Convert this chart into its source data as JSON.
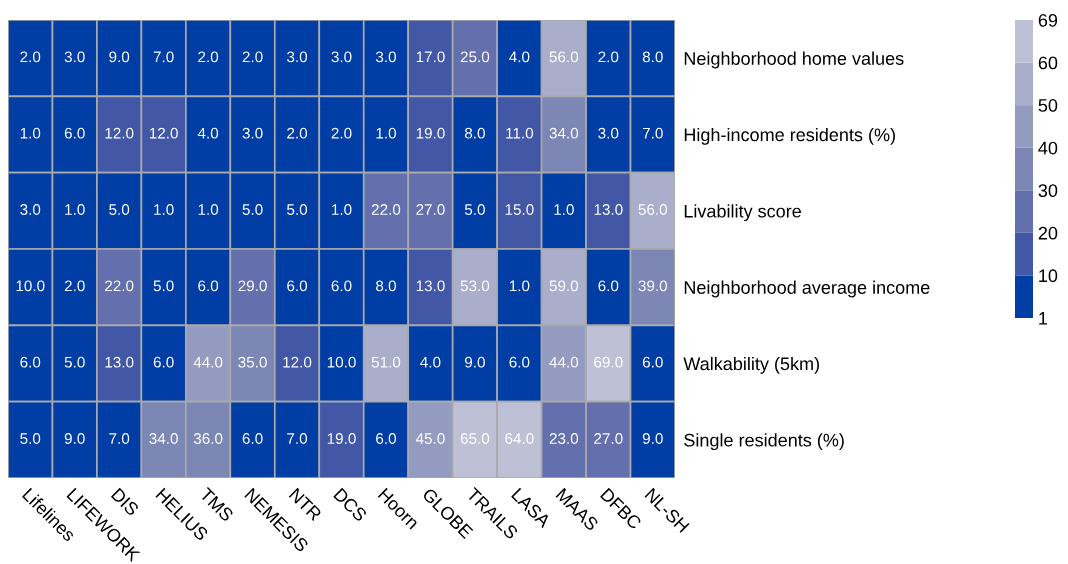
{
  "chart_data": {
    "type": "heatmap",
    "categories": [
      "Lifelines",
      "LIFEWORK",
      "DIS",
      "HELIUS",
      "TMS",
      "NEMESIS",
      "NTR",
      "DCS",
      "Hoorn",
      "GLOBE",
      "TRAILS",
      "LASA",
      "MAAS",
      "DFBC",
      "NL-SH"
    ],
    "y_categories": [
      "Neighborhood home values",
      "High-income residents (%)",
      "Livability score",
      "Neighborhood average income",
      "Walkability (5km)",
      "Single residents (%)"
    ],
    "cells": [
      [
        2,
        3,
        9,
        7,
        2,
        2,
        3,
        3,
        3,
        17,
        25,
        4,
        56,
        2,
        8
      ],
      [
        1,
        6,
        12,
        12,
        4,
        3,
        2,
        2,
        1,
        19,
        8,
        11,
        34,
        3,
        7
      ],
      [
        3,
        1,
        5,
        1,
        1,
        5,
        5,
        1,
        22,
        27,
        5,
        15,
        1,
        13,
        56
      ],
      [
        10,
        2,
        22,
        5,
        6,
        29,
        6,
        6,
        8,
        13,
        53,
        1,
        59,
        6,
        39
      ],
      [
        6,
        5,
        13,
        6,
        44,
        35,
        12,
        10,
        51,
        4,
        9,
        6,
        44,
        69,
        6
      ],
      [
        5,
        9,
        7,
        34,
        36,
        6,
        7,
        19,
        6,
        45,
        65,
        64,
        23,
        27,
        9
      ]
    ],
    "cell_labels": [
      [
        "2.0",
        "3.0",
        "9.0",
        "7.0",
        "2.0",
        "2.0",
        "3.0",
        "3.0",
        "3.0",
        "17.0",
        "25.0",
        "4.0",
        "56.0",
        "2.0",
        "8.0"
      ],
      [
        "1.0",
        "6.0",
        "12.0",
        "12.0",
        "4.0",
        "3.0",
        "2.0",
        "2.0",
        "1.0",
        "19.0",
        "8.0",
        "11.0",
        "34.0",
        "3.0",
        "7.0"
      ],
      [
        "3.0",
        "1.0",
        "5.0",
        "1.0",
        "1.0",
        "5.0",
        "5.0",
        "1.0",
        "22.0",
        "27.0",
        "5.0",
        "15.0",
        "1.0",
        "13.0",
        "56.0"
      ],
      [
        "10.0",
        "2.0",
        "22.0",
        "5.0",
        "6.0",
        "29.0",
        "6.0",
        "6.0",
        "8.0",
        "13.0",
        "53.0",
        "1.0",
        "59.0",
        "6.0",
        "39.0"
      ],
      [
        "6.0",
        "5.0",
        "13.0",
        "6.0",
        "44.0",
        "35.0",
        "12.0",
        "10.0",
        "51.0",
        "4.0",
        "9.0",
        "6.0",
        "44.0",
        "69.0",
        "6.0"
      ],
      [
        "5.0",
        "9.0",
        "7.0",
        "34.0",
        "36.0",
        "6.0",
        "7.0",
        "19.0",
        "6.0",
        "45.0",
        "65.0",
        "64.0",
        "23.0",
        "27.0",
        "9.0"
      ]
    ],
    "clim": [
      1,
      69
    ],
    "cticks": [
      1,
      10,
      20,
      30,
      40,
      50,
      60,
      69
    ],
    "colors": [
      "#003da5",
      "#4257a6",
      "#6470ad",
      "#7d87b6",
      "#939bc1",
      "#a9aecb",
      "#bec1d6"
    ]
  }
}
